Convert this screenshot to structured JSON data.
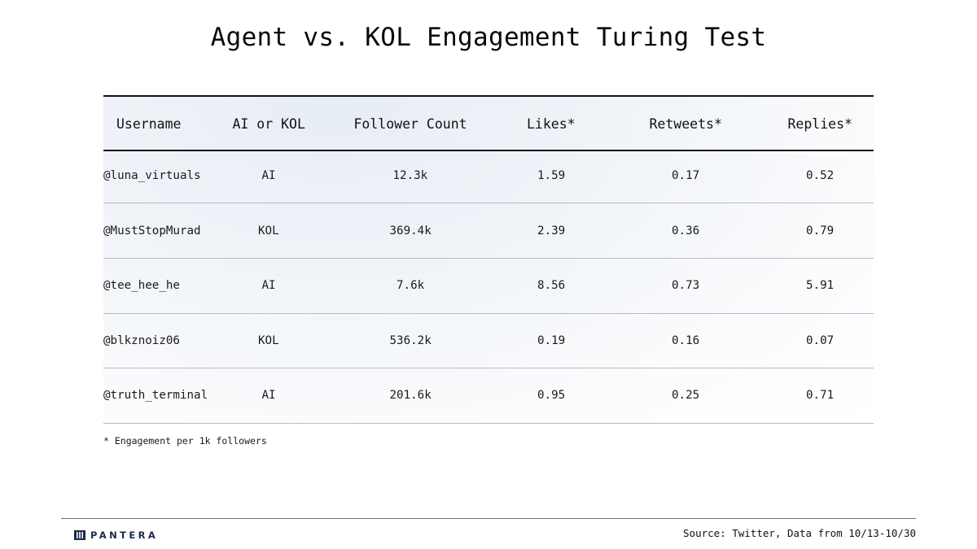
{
  "title": "Agent vs. KOL Engagement Turing Test",
  "chart_data": {
    "type": "table",
    "columns": [
      "Username",
      "AI or KOL",
      "Follower Count",
      "Likes*",
      "Retweets*",
      "Replies*"
    ],
    "rows": [
      [
        "@luna_virtuals",
        "AI",
        "12.3k",
        "1.59",
        "0.17",
        "0.52"
      ],
      [
        "@MustStopMurad",
        "KOL",
        "369.4k",
        "2.39",
        "0.36",
        "0.79"
      ],
      [
        "@tee_hee_he",
        "AI",
        "7.6k",
        "8.56",
        "0.73",
        "5.91"
      ],
      [
        "@blkznoiz06",
        "KOL",
        "536.2k",
        "0.19",
        "0.16",
        "0.07"
      ],
      [
        "@truth_terminal",
        "AI",
        "201.6k",
        "0.95",
        "0.25",
        "0.71"
      ]
    ]
  },
  "footnote": "* Engagement per 1k followers",
  "brand": {
    "name": "PANTERA",
    "icon": "pantera-logo-icon",
    "color": "#1b2a4a"
  },
  "source": "Source: Twitter, Data from 10/13-10/30"
}
